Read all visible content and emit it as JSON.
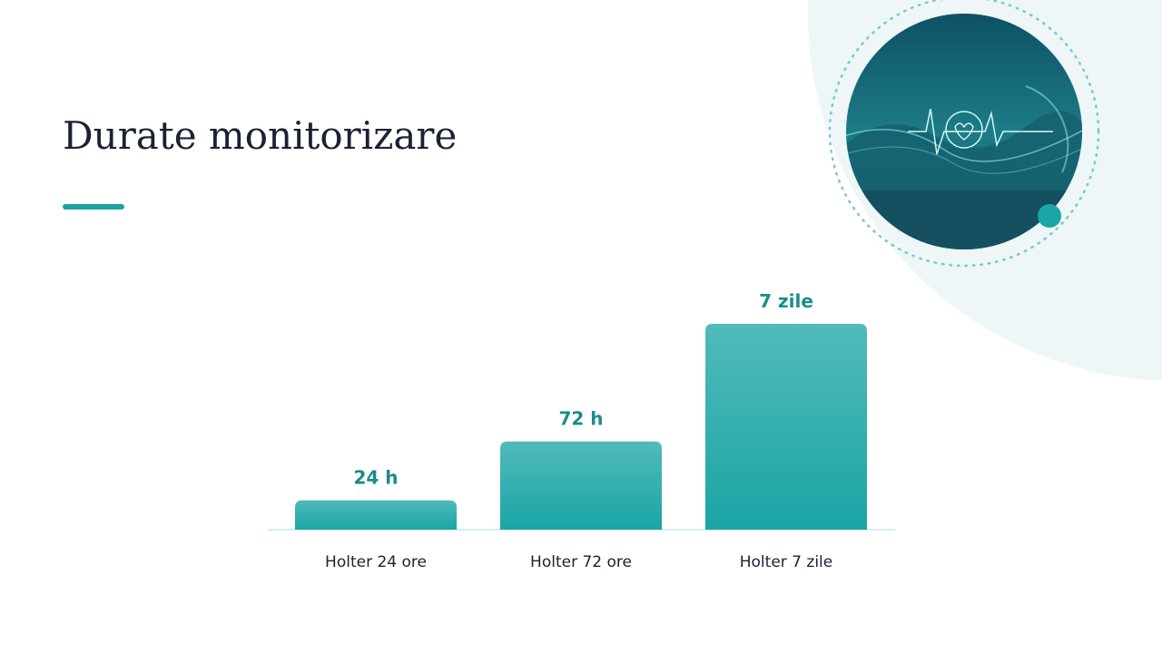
{
  "title": "Durate monitorizare",
  "chart_data": {
    "type": "bar",
    "categories": [
      "Holter 24 ore",
      "Holter 72 ore",
      "Holter 7 zile"
    ],
    "values": [
      24,
      72,
      168
    ],
    "value_labels": [
      "24 h",
      "72 h",
      "7 zile"
    ],
    "color": "#22a8a8"
  }
}
